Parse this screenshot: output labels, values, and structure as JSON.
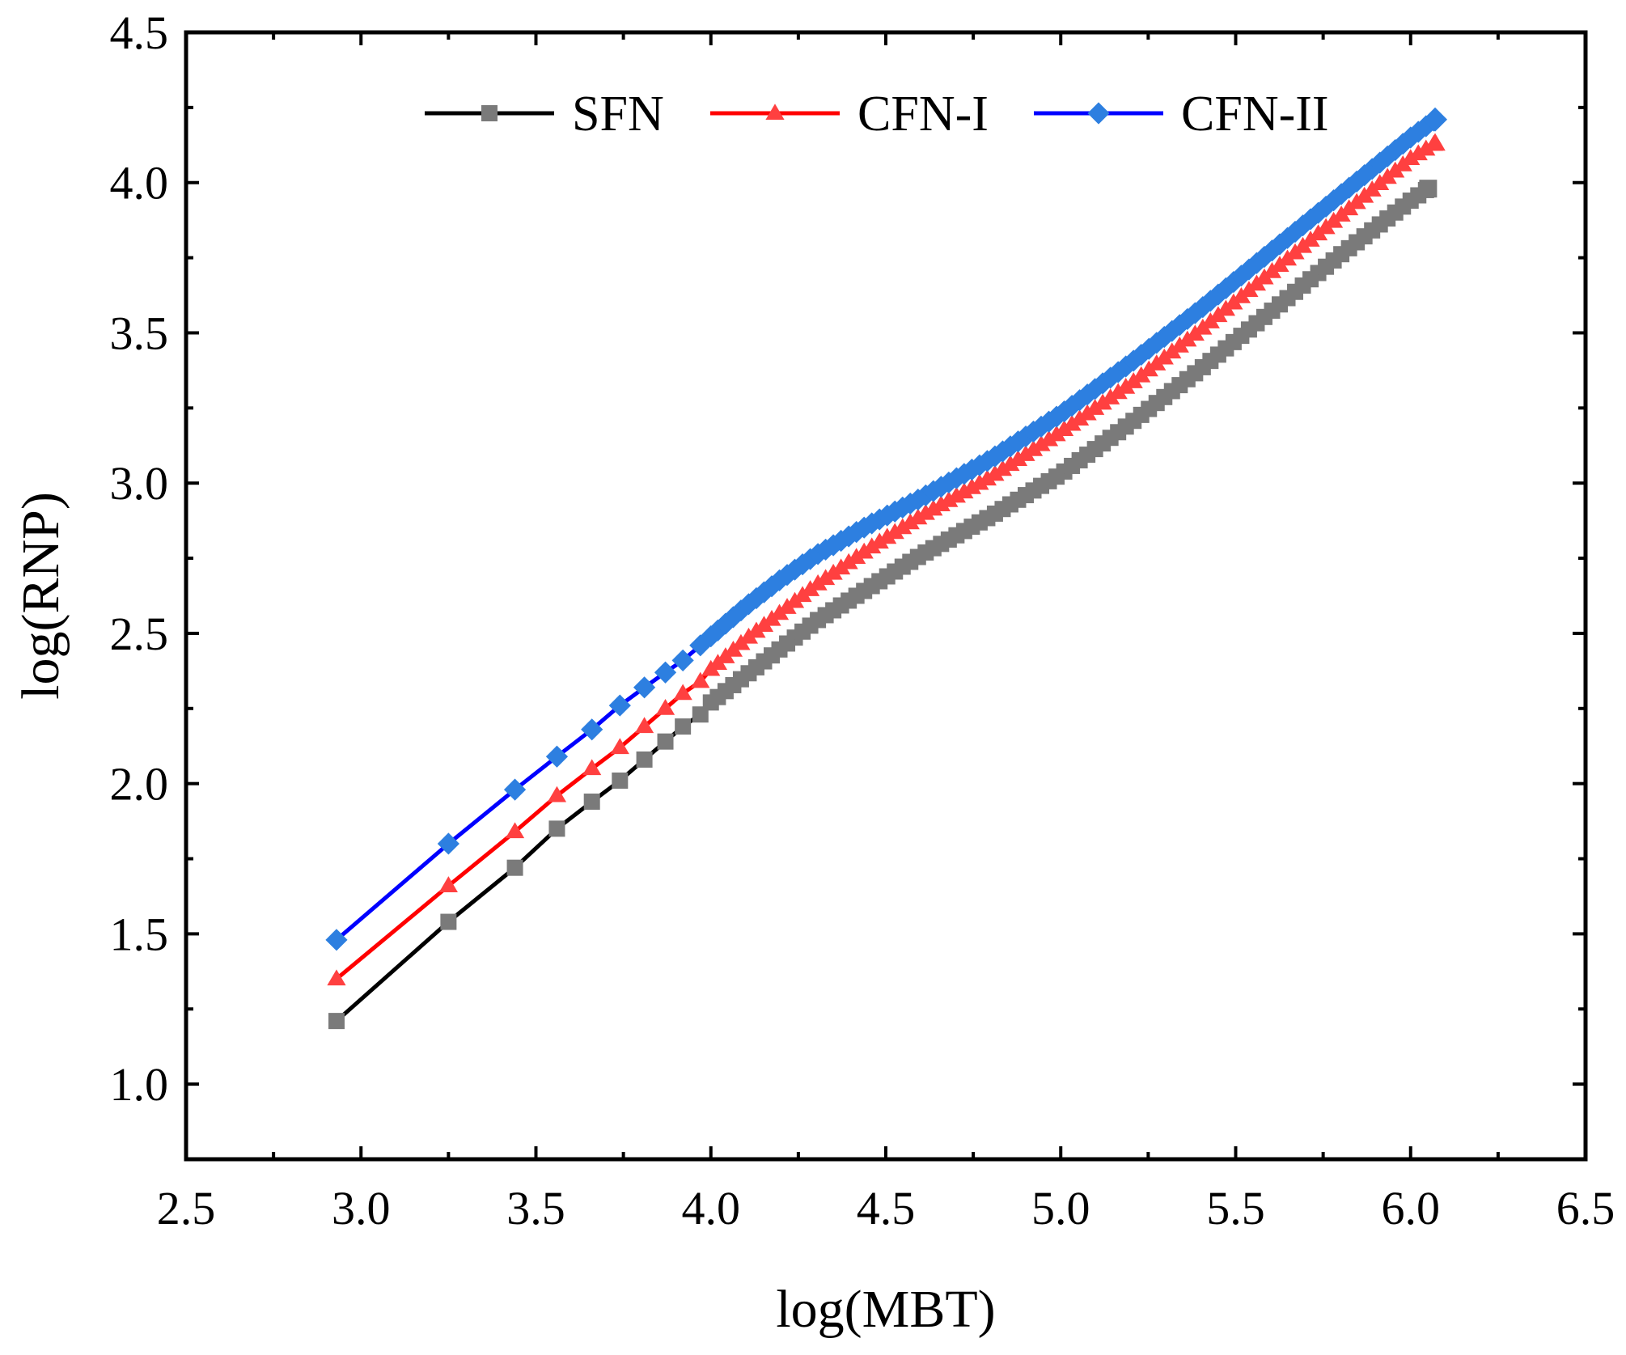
{
  "chart_data": {
    "type": "line",
    "title": "",
    "xlabel": "log(MBT)",
    "ylabel": "log(RNP)",
    "xlim": [
      2.5,
      6.5
    ],
    "ylim": [
      0.75,
      4.5
    ],
    "x_ticks": [
      "2.5",
      "3.0",
      "3.5",
      "4.0",
      "4.5",
      "5.0",
      "5.5",
      "6.0",
      "6.5"
    ],
    "y_ticks": [
      "1.0",
      "1.5",
      "2.0",
      "2.5",
      "3.0",
      "3.5",
      "4.0",
      "4.5"
    ],
    "legend_position": "top-center",
    "series": [
      {
        "name": "SFN",
        "color": "#000000",
        "marker_color": "#7a7a7a",
        "marker": "square",
        "points": [
          [
            2.93,
            1.21
          ],
          [
            3.25,
            1.54
          ],
          [
            3.44,
            1.72
          ],
          [
            3.56,
            1.85
          ],
          [
            3.66,
            1.94
          ],
          [
            3.74,
            2.01
          ],
          [
            3.81,
            2.08
          ],
          [
            3.87,
            2.14
          ],
          [
            3.92,
            2.19
          ],
          [
            3.97,
            2.23
          ],
          [
            4.0,
            2.27
          ],
          [
            4.1,
            2.36
          ],
          [
            4.2,
            2.45
          ],
          [
            4.3,
            2.54
          ],
          [
            4.45,
            2.65
          ],
          [
            4.6,
            2.76
          ],
          [
            4.8,
            2.89
          ],
          [
            5.0,
            3.03
          ],
          [
            5.2,
            3.2
          ],
          [
            5.4,
            3.38
          ],
          [
            5.6,
            3.57
          ],
          [
            5.8,
            3.76
          ],
          [
            6.0,
            3.94
          ],
          [
            6.05,
            3.98
          ]
        ]
      },
      {
        "name": "CFN-I",
        "color": "#ff0000",
        "marker_color": "#ff4040",
        "marker": "triangle",
        "points": [
          [
            2.93,
            1.35
          ],
          [
            3.25,
            1.66
          ],
          [
            3.44,
            1.84
          ],
          [
            3.56,
            1.96
          ],
          [
            3.66,
            2.05
          ],
          [
            3.74,
            2.12
          ],
          [
            3.81,
            2.19
          ],
          [
            3.87,
            2.25
          ],
          [
            3.92,
            2.3
          ],
          [
            3.97,
            2.34
          ],
          [
            4.0,
            2.38
          ],
          [
            4.1,
            2.48
          ],
          [
            4.2,
            2.57
          ],
          [
            4.3,
            2.66
          ],
          [
            4.45,
            2.78
          ],
          [
            4.6,
            2.89
          ],
          [
            4.8,
            3.02
          ],
          [
            5.0,
            3.17
          ],
          [
            5.2,
            3.33
          ],
          [
            5.4,
            3.51
          ],
          [
            5.6,
            3.7
          ],
          [
            5.8,
            3.89
          ],
          [
            6.0,
            4.08
          ],
          [
            6.07,
            4.13
          ]
        ]
      },
      {
        "name": "CFN-II",
        "color": "#0000ff",
        "marker_color": "#2d7fe0",
        "marker": "diamond",
        "points": [
          [
            2.93,
            1.48
          ],
          [
            3.25,
            1.8
          ],
          [
            3.44,
            1.98
          ],
          [
            3.56,
            2.09
          ],
          [
            3.66,
            2.18
          ],
          [
            3.74,
            2.26
          ],
          [
            3.81,
            2.32
          ],
          [
            3.87,
            2.37
          ],
          [
            3.92,
            2.41
          ],
          [
            3.97,
            2.46
          ],
          [
            4.0,
            2.49
          ],
          [
            4.1,
            2.59
          ],
          [
            4.2,
            2.68
          ],
          [
            4.3,
            2.76
          ],
          [
            4.45,
            2.86
          ],
          [
            4.6,
            2.95
          ],
          [
            4.8,
            3.08
          ],
          [
            5.0,
            3.23
          ],
          [
            5.2,
            3.4
          ],
          [
            5.4,
            3.58
          ],
          [
            5.6,
            3.77
          ],
          [
            5.8,
            3.96
          ],
          [
            6.0,
            4.15
          ],
          [
            6.07,
            4.21
          ]
        ]
      }
    ]
  }
}
